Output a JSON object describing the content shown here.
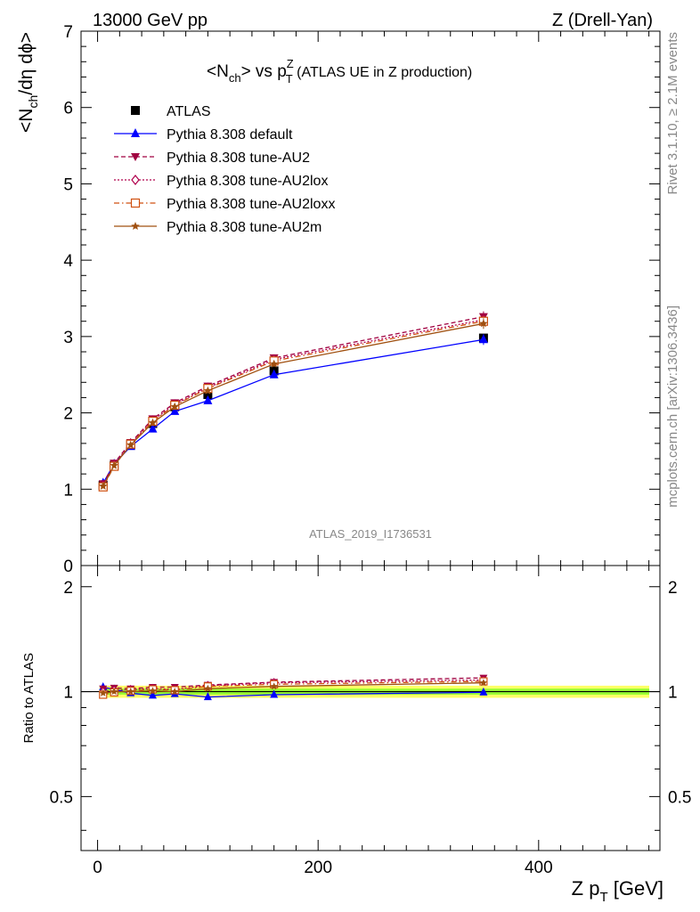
{
  "header": {
    "left": "13000 GeV pp",
    "right": "Z (Drell-Yan)"
  },
  "side_text": {
    "rivet": "Rivet 3.1.10, ≥ 2.1M events",
    "mcplots": "mcplots.cern.ch [arXiv:1306.3436]"
  },
  "chart_data": {
    "type": "line",
    "title": "<N_ch> vs p_T^Z (ATLAS UE in Z production)",
    "title_parts": {
      "a": "<N",
      "a_sub": "ch",
      "b": "> vs p",
      "b_sup": "Z",
      "b_sub": "T",
      "c": " (ATLAS UE in Z production)"
    },
    "watermark": "ATLAS_2019_I1736531",
    "ylabel_main": "<N_ch/dη dϕ>",
    "ylabel_parts": {
      "a": "<N",
      "a_sub": "ch",
      "b": "/dη dϕ>"
    },
    "ylabel_ratio": "Ratio to ATLAS",
    "xlabel": "Z p_T [GeV]",
    "xlabel_parts": {
      "a": "Z p",
      "a_sub": "T",
      "b": " [GeV]"
    },
    "xlim": [
      -15,
      510
    ],
    "ylim_main": [
      0,
      7
    ],
    "ylim_ratio": [
      0.35,
      2.3
    ],
    "ratio_log_scale": true,
    "xticks": [
      0,
      200,
      400
    ],
    "xtick_labels": [
      "0",
      "200",
      "400"
    ],
    "yticks_main": [
      0,
      1,
      2,
      3,
      4,
      5,
      6,
      7
    ],
    "ytick_labels_main": [
      "0",
      "1",
      "2",
      "3",
      "4",
      "5",
      "6",
      "7"
    ],
    "yticks_ratio": [
      0.5,
      1,
      2
    ],
    "ytick_labels_ratio": [
      "0.5",
      "1",
      "2"
    ],
    "grid": false,
    "legend_position": "top-left",
    "x": [
      5,
      15,
      30,
      50,
      70,
      100,
      160,
      350
    ],
    "series": [
      {
        "name": "ATLAS",
        "color": "#000000",
        "marker": "square",
        "line": "none",
        "values": [
          1.05,
          1.31,
          1.58,
          1.86,
          2.08,
          2.24,
          2.55,
          2.98
        ],
        "ratio": [
          1,
          1,
          1,
          1,
          1,
          1,
          1,
          1
        ]
      },
      {
        "name": "Pythia 8.308 default",
        "color": "#0000ff",
        "marker": "triangle-up",
        "line": "solid",
        "values": [
          1.08,
          1.33,
          1.56,
          1.79,
          2.02,
          2.16,
          2.5,
          2.96
        ],
        "ratio": [
          1.03,
          1.015,
          0.99,
          0.975,
          0.985,
          0.965,
          0.98,
          0.995
        ]
      },
      {
        "name": "Pythia 8.308 tune-AU2",
        "color": "#a00040",
        "marker": "triangle-down",
        "line": "dashed",
        "values": [
          1.07,
          1.34,
          1.61,
          1.92,
          2.13,
          2.35,
          2.72,
          3.26
        ],
        "ratio": [
          1.02,
          1.025,
          1.02,
          1.03,
          1.03,
          1.045,
          1.065,
          1.095
        ]
      },
      {
        "name": "Pythia 8.308 tune-AU2lox",
        "color": "#b0004c",
        "marker": "diamond-open",
        "line": "dotted",
        "values": [
          1.05,
          1.32,
          1.6,
          1.9,
          2.11,
          2.33,
          2.7,
          3.22
        ],
        "ratio": [
          1.0,
          1.01,
          1.013,
          1.02,
          1.015,
          1.04,
          1.06,
          1.08
        ]
      },
      {
        "name": "Pythia 8.308 tune-AU2loxx",
        "color": "#d05010",
        "marker": "square-open",
        "line": "dashdot",
        "values": [
          1.03,
          1.3,
          1.59,
          1.89,
          2.1,
          2.32,
          2.68,
          3.2
        ],
        "ratio": [
          0.98,
          0.995,
          1.005,
          1.015,
          1.01,
          1.035,
          1.05,
          1.07
        ]
      },
      {
        "name": "Pythia 8.308 tune-AU2m",
        "color": "#a05010",
        "marker": "star",
        "line": "solid",
        "values": [
          1.04,
          1.31,
          1.58,
          1.87,
          2.08,
          2.29,
          2.64,
          3.17
        ],
        "ratio": [
          0.99,
          1.0,
          1.0,
          1.005,
          1.0,
          1.02,
          1.035,
          1.06
        ]
      }
    ],
    "ratio_band": {
      "inner_color": "#99ff33",
      "outer_color": "#ffff66",
      "inner": 0.02,
      "outer": 0.04
    }
  }
}
